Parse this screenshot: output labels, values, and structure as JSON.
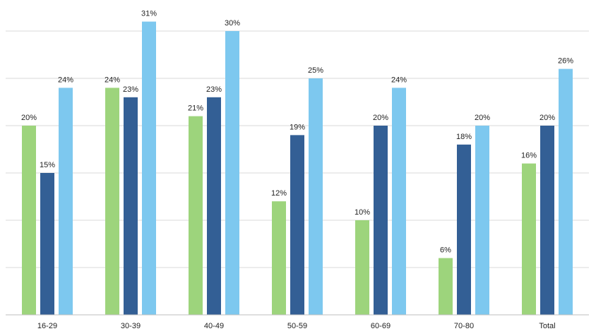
{
  "chart_data": {
    "type": "bar",
    "title": "",
    "xlabel": "",
    "ylabel": "",
    "categories": [
      "16-29",
      "30-39",
      "40-49",
      "50-59",
      "60-69",
      "70-80",
      "Total"
    ],
    "ylim": [
      0,
      30
    ],
    "grid": true,
    "legend": "none",
    "value_suffix": "%",
    "series": [
      {
        "color": "#9dd47c",
        "values": [
          20,
          24,
          21,
          12,
          10,
          6,
          16
        ]
      },
      {
        "color": "#335f95",
        "values": [
          15,
          23,
          23,
          19,
          20,
          18,
          20
        ]
      },
      {
        "color": "#7dc8ef",
        "values": [
          24,
          31,
          30,
          25,
          24,
          20,
          26
        ]
      }
    ],
    "colors": {
      "gridline": "#d9d9d9",
      "axis": "#bfbfbf"
    }
  }
}
